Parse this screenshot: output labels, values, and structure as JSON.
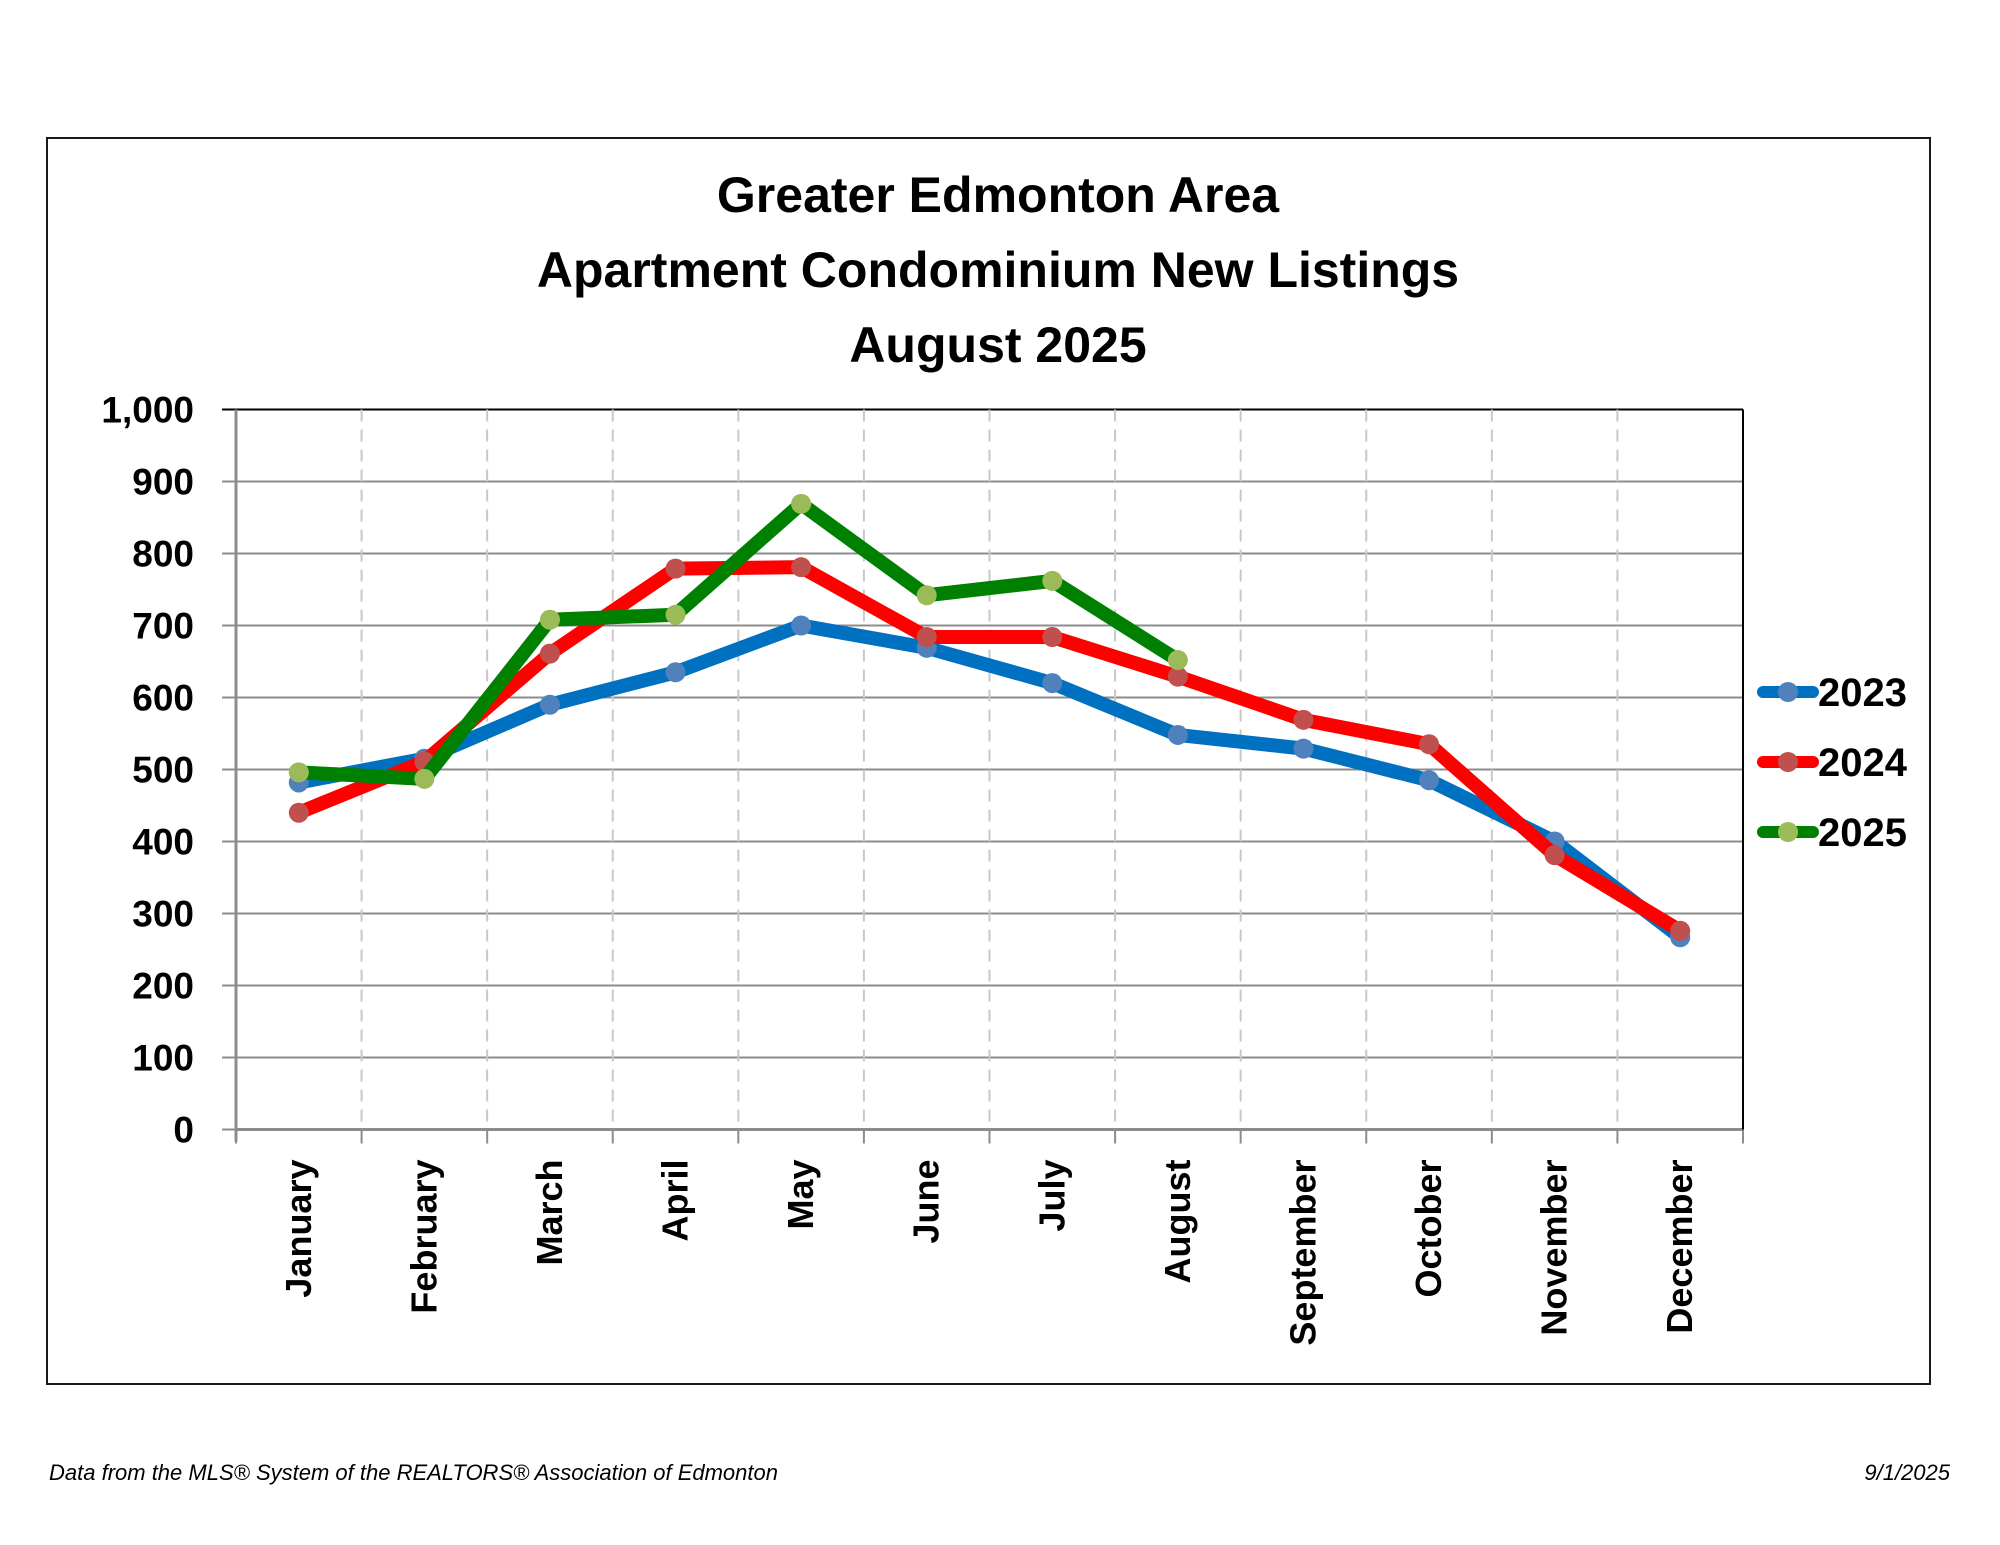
{
  "footer": {
    "source": "Data from the MLS® System of the REALTORS® Association of Edmonton",
    "date": "9/1/2025"
  },
  "chart_data": {
    "type": "line",
    "title": [
      "Greater Edmonton Area",
      "Apartment Condominium New Listings",
      "August 2025"
    ],
    "xlabel": "",
    "ylabel": "",
    "ylim": [
      0,
      1000
    ],
    "yticks": [
      0,
      100,
      200,
      300,
      400,
      500,
      600,
      700,
      800,
      900,
      1000
    ],
    "ytick_labels": [
      "0",
      "100",
      "200",
      "300",
      "400",
      "500",
      "600",
      "700",
      "800",
      "900",
      "1,000"
    ],
    "categories": [
      "January",
      "February",
      "March",
      "April",
      "May",
      "June",
      "July",
      "August",
      "September",
      "October",
      "November",
      "December"
    ],
    "grid": {
      "horizontal": "solid",
      "vertical": "dashed"
    },
    "legend_position": "right",
    "series": [
      {
        "name": "2023",
        "line_color": "#0070C0",
        "marker_color": "#4F81BD",
        "values": [
          482,
          515,
          590,
          635,
          700,
          669,
          620,
          548,
          529,
          485,
          400,
          267
        ]
      },
      {
        "name": "2024",
        "line_color": "#FF0000",
        "marker_color": "#C0504D",
        "values": [
          440,
          511,
          661,
          779,
          781,
          684,
          684,
          629,
          569,
          535,
          381,
          276
        ]
      },
      {
        "name": "2025",
        "line_color": "#008000",
        "marker_color": "#9BBB59",
        "values": [
          496,
          487,
          708,
          715,
          869,
          742,
          762,
          652,
          null,
          null,
          null,
          null
        ]
      }
    ]
  }
}
